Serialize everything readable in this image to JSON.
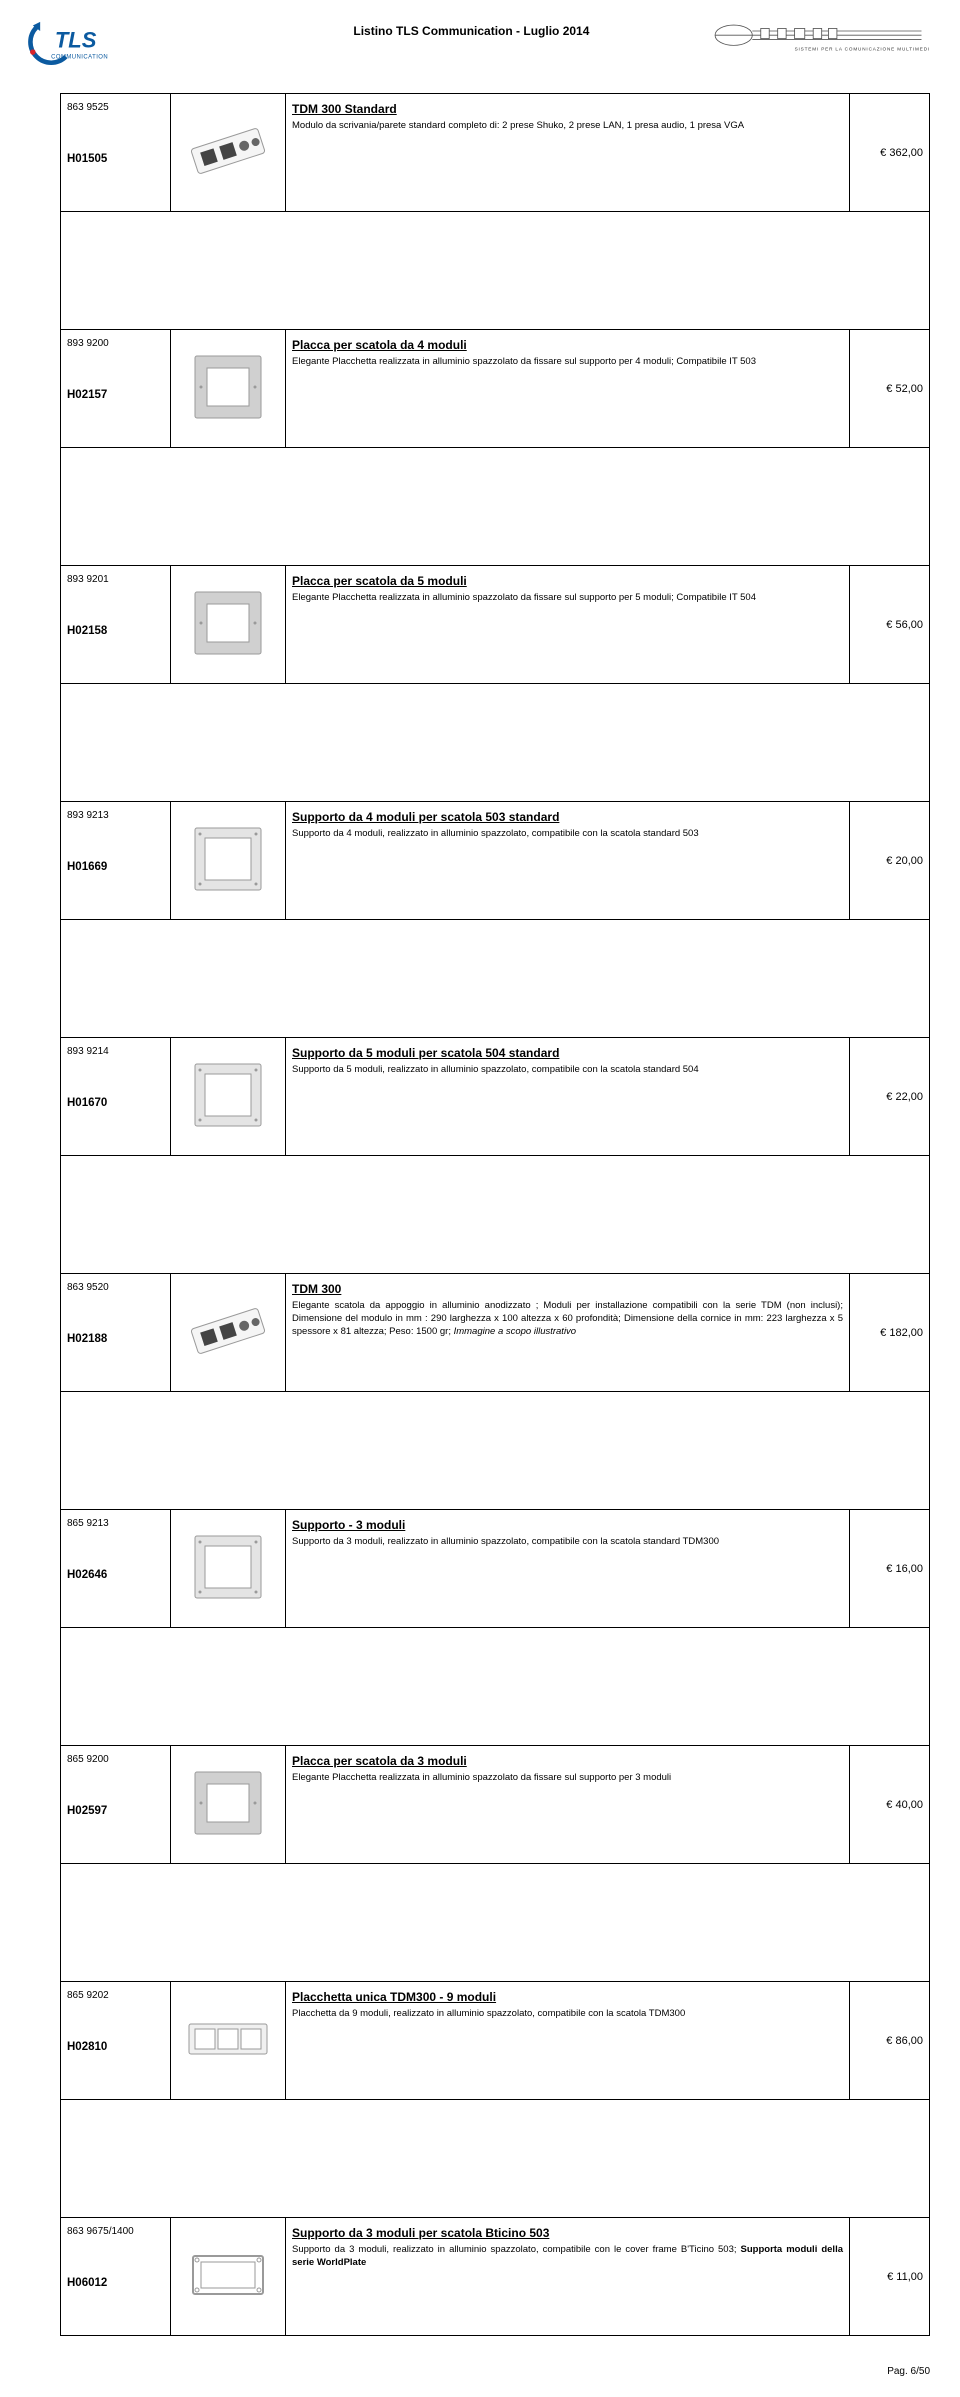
{
  "header": {
    "title": "Listino TLS Communication - Luglio 2014",
    "logo_left_text_top": "TLS",
    "logo_left_text_bottom": "COMMUNICATION",
    "logo_right_tag": "SISTEMI PER LA COMUNICAZIONE MULTIMEDIALE"
  },
  "rows": [
    {
      "id": "H01505",
      "sku": "863 9525",
      "title": "TDM 300 Standard",
      "desc": "Modulo da scrivania/parete standard completo di: 2 prese Shuko, 2 prese LAN, 1 presa audio, 1 presa VGA",
      "price": "€ 362,00",
      "thumb": "module"
    },
    {
      "id": "H02157",
      "sku": "893 9200",
      "title": "Placca per scatola da 4 moduli",
      "desc": "Elegante Placchetta realizzata in alluminio spazzolato da fissare sul supporto per 4 moduli; Compatibile IT 503",
      "price": "€ 52,00",
      "thumb": "frame1"
    },
    {
      "id": "H02158",
      "sku": "893 9201",
      "title": "Placca per scatola da 5 moduli",
      "desc": "Elegante Placchetta realizzata in alluminio spazzolato da fissare sul supporto per 5 moduli; Compatibile IT 504",
      "price": "€ 56,00",
      "thumb": "frame1"
    },
    {
      "id": "H01669",
      "sku": "893 9213",
      "title": "Supporto da 4 moduli per scatola 503 standard",
      "desc": "Supporto da 4 moduli, realizzato in alluminio spazzolato, compatibile con la scatola standard 503",
      "price": "€ 20,00",
      "thumb": "frame2"
    },
    {
      "id": "H01670",
      "sku": "893 9214",
      "title": "Supporto da 5 moduli per scatola 504 standard",
      "desc": "Supporto da 5 moduli, realizzato in alluminio spazzolato, compatibile con la scatola standard 504",
      "price": "€ 22,00",
      "thumb": "frame2"
    },
    {
      "id": "H02188",
      "sku": "863 9520",
      "title": "TDM 300",
      "desc": "Elegante scatola da appoggio in alluminio anodizzato ; Moduli per installazione compatibili con la serie TDM (non inclusi); Dimensione del modulo in mm : 290 larghezza x 100 altezza x 60 profondità; Dimensione della cornice in mm: 223 larghezza x 5 spessore x 81 altezza; Peso: 1500 gr; <i>Immagine a scopo illustrativo</i>",
      "price": "€ 182,00",
      "thumb": "module"
    },
    {
      "id": "H02646",
      "sku": "865 9213",
      "title": "Supporto - 3 moduli",
      "desc": "Supporto da 3 moduli, realizzato in alluminio spazzolato, compatibile con la scatola standard TDM300",
      "price": "€ 16,00",
      "thumb": "frame2"
    },
    {
      "id": "H02597",
      "sku": "865 9200",
      "title": "Placca per scatola da 3 moduli",
      "desc": "Elegante Placchetta realizzata in alluminio spazzolato da fissare sul supporto per 3 moduli",
      "price": "€ 40,00",
      "thumb": "frame1"
    },
    {
      "id": "H02810",
      "sku": "865 9202",
      "title": "Placchetta unica TDM300 - 9 moduli",
      "desc": "Placchetta da 9 moduli, realizzato in alluminio spazzolato, compatibile con la scatola TDM300",
      "price": "€ 86,00",
      "thumb": "wide"
    },
    {
      "id": "H06012",
      "sku": "863 9675/1400",
      "title": "Supporto da 3 moduli per scatola Bticino 503",
      "desc": "Supporto da 3 moduli, realizzato in alluminio spazzolato, compatibile con le cover frame B'Ticino 503; <b> Supporta moduli della serie WorldPlate</b>",
      "price": "€ 11,00",
      "thumb": "bracket"
    }
  ],
  "footer": {
    "page": "Pag. 6/50"
  },
  "colors": {
    "border": "#000000",
    "text": "#000000",
    "bg": "#ffffff",
    "logo_blue": "#0b5aa0",
    "logo_red": "#d8232a",
    "thumb_gray": "#d0d0d0",
    "thumb_dark": "#9a9a9a"
  }
}
